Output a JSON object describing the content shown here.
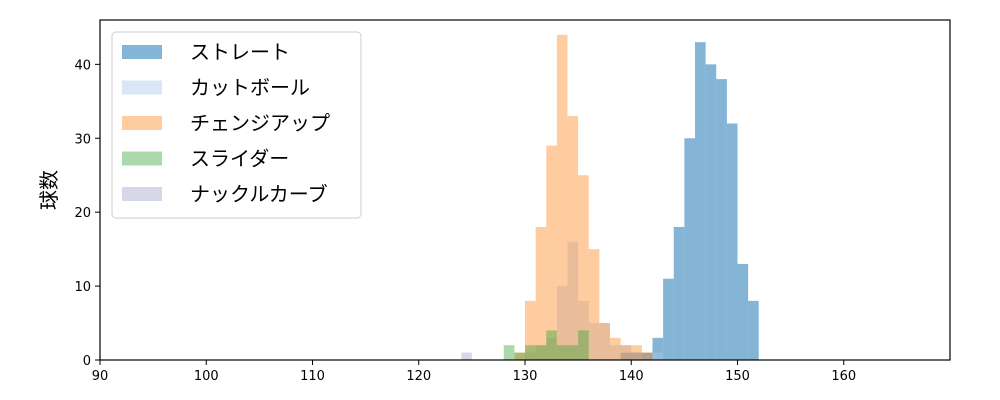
{
  "chart_data": {
    "type": "histogram",
    "title": "",
    "xlabel": "",
    "ylabel": "球数",
    "xlim": [
      90,
      170
    ],
    "ylim": [
      0,
      46
    ],
    "xticks": [
      90,
      100,
      110,
      120,
      130,
      140,
      150,
      160
    ],
    "yticks": [
      0,
      10,
      20,
      30,
      40
    ],
    "grid": false,
    "legend_position": "top-left",
    "bin_width": 1,
    "series": [
      {
        "name": "ストレート",
        "color": "#1f77b4",
        "opacity": 0.55,
        "bins": [
          [
            139,
            1
          ],
          [
            140,
            1
          ],
          [
            141,
            1
          ],
          [
            142,
            3
          ],
          [
            143,
            11
          ],
          [
            144,
            18
          ],
          [
            145,
            30
          ],
          [
            146,
            43
          ],
          [
            147,
            40
          ],
          [
            148,
            38
          ],
          [
            149,
            32
          ],
          [
            150,
            13
          ],
          [
            151,
            8
          ]
        ]
      },
      {
        "name": "カットボール",
        "color": "#aec7e8",
        "opacity": 0.45,
        "bins": [
          [
            130,
            1
          ],
          [
            131,
            2
          ],
          [
            132,
            3
          ],
          [
            133,
            10
          ],
          [
            134,
            16
          ],
          [
            135,
            8
          ],
          [
            136,
            5
          ],
          [
            137,
            5
          ],
          [
            138,
            2
          ],
          [
            139,
            2
          ],
          [
            140,
            1
          ],
          [
            142,
            1
          ]
        ]
      },
      {
        "name": "チェンジアップ",
        "color": "#ff7f0e",
        "opacity": 0.4,
        "bins": [
          [
            129,
            1
          ],
          [
            130,
            8
          ],
          [
            131,
            18
          ],
          [
            132,
            29
          ],
          [
            133,
            44
          ],
          [
            134,
            33
          ],
          [
            135,
            25
          ],
          [
            136,
            15
          ],
          [
            137,
            5
          ],
          [
            138,
            3
          ],
          [
            139,
            2
          ],
          [
            140,
            2
          ],
          [
            141,
            1
          ]
        ]
      },
      {
        "name": "スライダー",
        "color": "#2ca02c",
        "opacity": 0.4,
        "bins": [
          [
            128,
            2
          ],
          [
            129,
            1
          ],
          [
            130,
            2
          ],
          [
            131,
            2
          ],
          [
            132,
            4
          ],
          [
            133,
            2
          ],
          [
            134,
            2
          ],
          [
            135,
            4
          ]
        ]
      },
      {
        "name": "ナックルカーブ",
        "color": "#bcbddc",
        "opacity": 0.6,
        "bins": [
          [
            124,
            1
          ]
        ]
      }
    ]
  }
}
